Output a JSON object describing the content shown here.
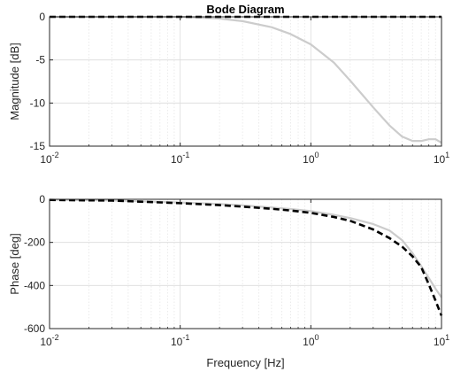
{
  "chart_data": [
    {
      "type": "line",
      "title": "Bode Diagram",
      "xlabel": "",
      "ylabel": "Magnitude [dB]",
      "xscale": "log",
      "xlim": [
        0.01,
        10
      ],
      "ylim": [
        -15,
        0
      ],
      "xticks": [
        {
          "value": 0.01,
          "base": "10",
          "exp": "-2"
        },
        {
          "value": 0.1,
          "base": "10",
          "exp": "-1"
        },
        {
          "value": 1,
          "base": "10",
          "exp": "0"
        },
        {
          "value": 10,
          "base": "10",
          "exp": "1"
        }
      ],
      "yticks": [
        {
          "value": 0,
          "label": "0"
        },
        {
          "value": -5,
          "label": "-5"
        },
        {
          "value": -10,
          "label": "-10"
        },
        {
          "value": -15,
          "label": "-15"
        }
      ],
      "grid": true,
      "series": [
        {
          "style": "solid",
          "color": "#cccccc",
          "x": [
            0.01,
            0.03,
            0.1,
            0.2,
            0.3,
            0.5,
            0.7,
            1,
            1.5,
            2,
            3,
            4,
            5,
            6,
            7,
            8,
            9,
            10
          ],
          "y": [
            0,
            0,
            0,
            -0.2,
            -0.5,
            -1.2,
            -2.0,
            -3.2,
            -5.3,
            -7.4,
            -10.5,
            -12.6,
            -13.9,
            -14.4,
            -14.4,
            -14.2,
            -14.2,
            -14.6
          ]
        },
        {
          "style": "dashed",
          "color": "#000000",
          "x": [
            0.01,
            10
          ],
          "y": [
            0,
            0
          ]
        }
      ]
    },
    {
      "type": "line",
      "title": "",
      "xlabel": "Frequency [Hz]",
      "ylabel": "Phase [deg]",
      "xscale": "log",
      "xlim": [
        0.01,
        10
      ],
      "ylim": [
        -600,
        0
      ],
      "xticks": [
        {
          "value": 0.01,
          "base": "10",
          "exp": "-2"
        },
        {
          "value": 0.1,
          "base": "10",
          "exp": "-1"
        },
        {
          "value": 1,
          "base": "10",
          "exp": "0"
        },
        {
          "value": 10,
          "base": "10",
          "exp": "1"
        }
      ],
      "yticks": [
        {
          "value": 0,
          "label": "0"
        },
        {
          "value": -200,
          "label": "-200"
        },
        {
          "value": -400,
          "label": "-400"
        },
        {
          "value": -600,
          "label": "-600"
        }
      ],
      "grid": true,
      "series": [
        {
          "style": "solid",
          "color": "#cccccc",
          "x": [
            0.01,
            0.03,
            0.1,
            0.2,
            0.3,
            0.5,
            0.7,
            1,
            1.5,
            2,
            3,
            4,
            5,
            6,
            7,
            8,
            9,
            10
          ],
          "y": [
            -2,
            -5,
            -15,
            -22,
            -28,
            -38,
            -45,
            -55,
            -72,
            -87,
            -115,
            -145,
            -190,
            -250,
            -310,
            -365,
            -415,
            -455
          ]
        },
        {
          "style": "dashed",
          "color": "#000000",
          "x": [
            0.01,
            0.03,
            0.1,
            0.2,
            0.3,
            0.5,
            0.7,
            1,
            1.5,
            2,
            3,
            4,
            5,
            6,
            7,
            8,
            9,
            10
          ],
          "y": [
            -3,
            -6,
            -18,
            -27,
            -34,
            -44,
            -52,
            -63,
            -82,
            -100,
            -140,
            -180,
            -220,
            -265,
            -315,
            -395,
            -470,
            -540
          ]
        }
      ]
    }
  ]
}
